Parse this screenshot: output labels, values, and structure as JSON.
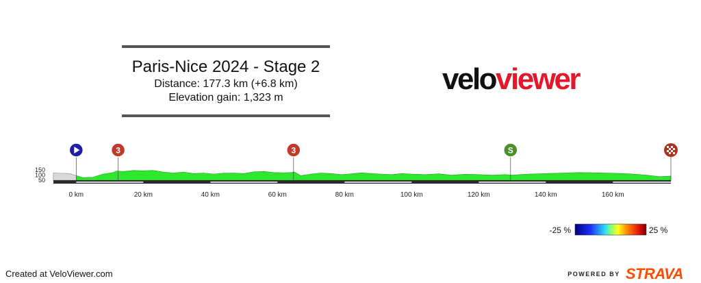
{
  "header": {
    "title": "Paris-Nice 2024 - Stage 2",
    "distance": "Distance: 177.3 km (+6.8 km)",
    "elevation": "Elevation gain: 1,323 m"
  },
  "logo": {
    "part1": "velo",
    "part2": "viewer"
  },
  "footer": {
    "created": "Created at VeloViewer.com",
    "powered": "POWERED BY",
    "brand": "STRAVA"
  },
  "colors": {
    "profile_fill": "#2ee82e",
    "logo_red": "#e4182b",
    "strava": "#fc4c02",
    "start": "#1f1fa6",
    "kom": "#c0392b",
    "sprint": "#4a8f2a"
  },
  "chart_data": {
    "type": "area",
    "title": "Paris-Nice 2024 - Stage 2",
    "xlabel": "",
    "ylabel": "",
    "xlim": [
      -6.8,
      177.3
    ],
    "ylim": [
      50,
      150
    ],
    "x_ticks": [
      0,
      20,
      40,
      60,
      80,
      100,
      120,
      140,
      160
    ],
    "x_tick_labels": [
      "0 km",
      "20 km",
      "40 km",
      "60 km",
      "80 km",
      "100 km",
      "120 km",
      "140 km",
      "160 km"
    ],
    "y_ticks": [
      50,
      100,
      150
    ],
    "y_tick_labels": [
      "50",
      "100",
      "150"
    ],
    "series": [
      {
        "x": [
          -6.8,
          -2,
          0,
          2,
          5,
          8,
          11,
          12,
          14,
          17,
          20,
          23,
          26,
          29,
          32,
          35,
          38,
          41,
          44,
          47,
          50,
          53,
          56,
          59,
          62,
          64,
          65,
          67,
          70,
          73,
          76,
          79,
          82,
          85,
          88,
          91,
          94,
          97,
          100,
          104,
          108,
          112,
          116,
          120,
          124,
          128,
          130,
          135,
          140,
          145,
          150,
          155,
          160,
          165,
          170,
          174,
          177.3
        ],
        "y": [
          120,
          115,
          95,
          75,
          80,
          110,
          125,
          140,
          135,
          145,
          142,
          145,
          130,
          120,
          130,
          115,
          120,
          110,
          118,
          120,
          115,
          132,
          135,
          125,
          122,
          125,
          130,
          95,
          110,
          120,
          115,
          105,
          112,
          122,
          115,
          110,
          105,
          115,
          110,
          105,
          112,
          100,
          108,
          105,
          100,
          105,
          100,
          110,
          115,
          120,
          125,
          122,
          118,
          112,
          100,
          85,
          90
        ]
      }
    ],
    "markers": [
      {
        "type": "start",
        "label": "",
        "km": 0
      },
      {
        "type": "kom",
        "label": "3",
        "km": 12.5
      },
      {
        "type": "kom",
        "label": "3",
        "km": 64.8
      },
      {
        "type": "sprint",
        "label": "S",
        "km": 129.5
      },
      {
        "type": "finish",
        "label": "",
        "km": 177.3
      }
    ],
    "gradient_legend": {
      "min_label": "-25 %",
      "max_label": "25 %",
      "min": -25,
      "max": 25
    }
  }
}
